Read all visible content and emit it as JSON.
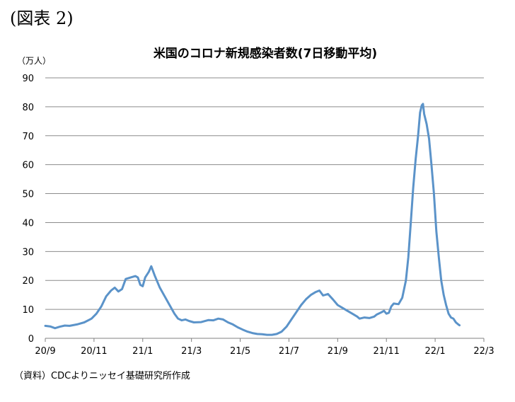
{
  "figure_label": "(図表 2)",
  "source_note": "（資料）CDCよりニッセイ基礎研究所作成",
  "chart_data": {
    "type": "line",
    "title": "米国のコロナ新規感染者数(7日移動平均)",
    "ylabel": "（万人）",
    "xlabel": "",
    "ylim": [
      0,
      90
    ],
    "yticks": [
      0,
      10,
      20,
      30,
      40,
      50,
      60,
      70,
      80,
      90
    ],
    "xticks": [
      "20/9",
      "20/11",
      "21/1",
      "21/3",
      "21/5",
      "21/7",
      "21/9",
      "21/11",
      "22/1",
      "22/3"
    ],
    "x_unit": "month",
    "grid": "horizontal",
    "line_color": "#5b93c9",
    "points": [
      [
        0.0,
        4.3
      ],
      [
        0.2,
        4.1
      ],
      [
        0.4,
        3.5
      ],
      [
        0.6,
        4.0
      ],
      [
        0.8,
        4.4
      ],
      [
        1.0,
        4.3
      ],
      [
        1.3,
        4.8
      ],
      [
        1.6,
        5.5
      ],
      [
        1.9,
        6.8
      ],
      [
        2.1,
        8.5
      ],
      [
        2.3,
        11.0
      ],
      [
        2.5,
        14.5
      ],
      [
        2.7,
        16.5
      ],
      [
        2.85,
        17.5
      ],
      [
        3.0,
        16.2
      ],
      [
        3.15,
        17.0
      ],
      [
        3.3,
        20.5
      ],
      [
        3.5,
        21.0
      ],
      [
        3.7,
        21.5
      ],
      [
        3.8,
        21.0
      ],
      [
        3.9,
        18.5
      ],
      [
        4.0,
        18.0
      ],
      [
        4.1,
        21.0
      ],
      [
        4.25,
        23.0
      ],
      [
        4.35,
        24.9
      ],
      [
        4.5,
        21.5
      ],
      [
        4.7,
        17.5
      ],
      [
        4.9,
        14.5
      ],
      [
        5.1,
        11.5
      ],
      [
        5.3,
        8.5
      ],
      [
        5.45,
        6.8
      ],
      [
        5.6,
        6.2
      ],
      [
        5.75,
        6.5
      ],
      [
        5.9,
        6.0
      ],
      [
        6.1,
        5.5
      ],
      [
        6.4,
        5.6
      ],
      [
        6.7,
        6.3
      ],
      [
        6.9,
        6.2
      ],
      [
        7.1,
        6.8
      ],
      [
        7.3,
        6.5
      ],
      [
        7.5,
        5.5
      ],
      [
        7.7,
        4.8
      ],
      [
        7.9,
        3.8
      ],
      [
        8.1,
        3.0
      ],
      [
        8.3,
        2.3
      ],
      [
        8.5,
        1.8
      ],
      [
        8.7,
        1.5
      ],
      [
        8.9,
        1.4
      ],
      [
        9.1,
        1.2
      ],
      [
        9.3,
        1.2
      ],
      [
        9.5,
        1.5
      ],
      [
        9.7,
        2.3
      ],
      [
        9.9,
        4.0
      ],
      [
        10.1,
        6.5
      ],
      [
        10.3,
        9.0
      ],
      [
        10.5,
        11.5
      ],
      [
        10.7,
        13.5
      ],
      [
        10.9,
        15.0
      ],
      [
        11.1,
        16.0
      ],
      [
        11.25,
        16.5
      ],
      [
        11.4,
        14.8
      ],
      [
        11.6,
        15.3
      ],
      [
        11.8,
        13.5
      ],
      [
        12.0,
        11.5
      ],
      [
        12.2,
        10.5
      ],
      [
        12.4,
        9.5
      ],
      [
        12.6,
        8.5
      ],
      [
        12.8,
        7.5
      ],
      [
        12.9,
        6.8
      ],
      [
        13.1,
        7.2
      ],
      [
        13.3,
        7.0
      ],
      [
        13.5,
        7.5
      ],
      [
        13.6,
        8.2
      ],
      [
        13.8,
        9.0
      ],
      [
        13.9,
        9.5
      ],
      [
        14.0,
        8.5
      ],
      [
        14.1,
        8.8
      ],
      [
        14.2,
        11.0
      ],
      [
        14.3,
        12.0
      ],
      [
        14.5,
        11.8
      ],
      [
        14.65,
        14.0
      ],
      [
        14.8,
        20.0
      ],
      [
        14.9,
        28.0
      ],
      [
        15.0,
        40.0
      ],
      [
        15.1,
        52.0
      ],
      [
        15.2,
        62.0
      ],
      [
        15.3,
        70.0
      ],
      [
        15.38,
        78.0
      ],
      [
        15.45,
        80.5
      ],
      [
        15.5,
        81.0
      ],
      [
        15.55,
        77.5
      ],
      [
        15.65,
        74.0
      ],
      [
        15.75,
        69.0
      ],
      [
        15.85,
        60.0
      ],
      [
        15.95,
        50.0
      ],
      [
        16.05,
        37.0
      ],
      [
        16.15,
        28.0
      ],
      [
        16.25,
        20.0
      ],
      [
        16.35,
        15.0
      ],
      [
        16.45,
        11.5
      ],
      [
        16.55,
        8.5
      ],
      [
        16.65,
        7.2
      ],
      [
        16.75,
        6.8
      ],
      [
        16.85,
        5.5
      ],
      [
        16.95,
        4.8
      ],
      [
        17.0,
        4.5
      ]
    ]
  }
}
